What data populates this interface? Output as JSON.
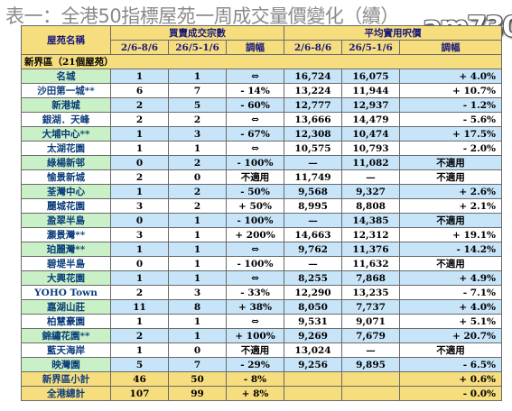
{
  "title": "表一：全港50指標屋苑一周成交量價變化（續）",
  "watermark": "am730",
  "headers": {
    "estate": "屋苑名稱",
    "volume_group": "買賣成交宗數",
    "price_group": "平均實用呎價",
    "col_2_8_6": "2/6-8/6",
    "col_26_5_1_6": "26/5-1/6",
    "change": "調幅"
  },
  "region_label": "新界區（21個屋苑）",
  "rows": [
    {
      "name": "名城",
      "v1": "1",
      "v2": "1",
      "vc": "⇔",
      "p1": "16,724",
      "p2": "16,075",
      "pc": "+ 4.0%"
    },
    {
      "name": "沙田第一城**",
      "v1": "6",
      "v2": "7",
      "vc": "- 14%",
      "p1": "13,224",
      "p2": "11,944",
      "pc": "+ 10.7%"
    },
    {
      "name": "新港城",
      "v1": "2",
      "v2": "5",
      "vc": "- 60%",
      "p1": "12,777",
      "p2": "12,937",
      "pc": "- 1.2%"
    },
    {
      "name": "銀湖．天峰",
      "v1": "2",
      "v2": "2",
      "vc": "⇔",
      "p1": "13,666",
      "p2": "14,479",
      "pc": "- 5.6%"
    },
    {
      "name": "大埔中心**",
      "v1": "1",
      "v2": "3",
      "vc": "- 67%",
      "p1": "12,308",
      "p2": "10,474",
      "pc": "+ 17.5%"
    },
    {
      "name": "太湖花園",
      "v1": "1",
      "v2": "1",
      "vc": "⇔",
      "p1": "10,575",
      "p2": "10,793",
      "pc": "- 2.0%"
    },
    {
      "name": "綠楊新邨",
      "v1": "0",
      "v2": "2",
      "vc": "- 100%",
      "p1": "—",
      "p2": "11,082",
      "pc": "不適用"
    },
    {
      "name": "愉景新城",
      "v1": "2",
      "v2": "0",
      "vc": "不適用",
      "p1": "11,749",
      "p2": "—",
      "pc": "不適用"
    },
    {
      "name": "荃灣中心",
      "v1": "1",
      "v2": "2",
      "vc": "- 50%",
      "p1": "9,568",
      "p2": "9,327",
      "pc": "+ 2.6%"
    },
    {
      "name": "麗城花園",
      "v1": "3",
      "v2": "2",
      "vc": "+ 50%",
      "p1": "8,995",
      "p2": "8,808",
      "pc": "+ 2.1%"
    },
    {
      "name": "盈翠半島",
      "v1": "0",
      "v2": "1",
      "vc": "- 100%",
      "p1": "—",
      "p2": "14,385",
      "pc": "不適用"
    },
    {
      "name": "灝景灣**",
      "v1": "3",
      "v2": "1",
      "vc": "+ 200%",
      "p1": "14,663",
      "p2": "12,312",
      "pc": "+ 19.1%"
    },
    {
      "name": "珀麗灣**",
      "v1": "1",
      "v2": "1",
      "vc": "⇔",
      "p1": "9,762",
      "p2": "11,376",
      "pc": "- 14.2%"
    },
    {
      "name": "碧堤半島",
      "v1": "0",
      "v2": "1",
      "vc": "- 100%",
      "p1": "—",
      "p2": "11,632",
      "pc": "不適用"
    },
    {
      "name": "大興花園",
      "v1": "1",
      "v2": "1",
      "vc": "⇔",
      "p1": "8,255",
      "p2": "7,868",
      "pc": "+ 4.9%"
    },
    {
      "name": "YOHO Town",
      "v1": "2",
      "v2": "3",
      "vc": "- 33%",
      "p1": "12,290",
      "p2": "13,235",
      "pc": "- 7.1%"
    },
    {
      "name": "嘉湖山莊",
      "v1": "11",
      "v2": "8",
      "vc": "+ 38%",
      "p1": "8,050",
      "p2": "7,737",
      "pc": "+ 4.0%"
    },
    {
      "name": "柏慧豪園",
      "v1": "1",
      "v2": "1",
      "vc": "⇔",
      "p1": "9,531",
      "p2": "9,071",
      "pc": "+ 5.1%"
    },
    {
      "name": "錦繡花園**",
      "v1": "2",
      "v2": "1",
      "vc": "+ 100%",
      "p1": "9,269",
      "p2": "7,679",
      "pc": "+ 20.7%"
    },
    {
      "name": "藍天海岸",
      "v1": "1",
      "v2": "0",
      "vc": "不適用",
      "p1": "13,024",
      "p2": "—",
      "pc": "不適用"
    },
    {
      "name": "映灣園",
      "v1": "5",
      "v2": "7",
      "vc": "- 29%",
      "p1": "9,256",
      "p2": "9,895",
      "pc": "- 6.5%"
    }
  ],
  "totals": [
    {
      "name": "新界區小計",
      "v1": "46",
      "v2": "50",
      "vc": "- 8%",
      "p1": "",
      "p2": "",
      "pc": "+ 0.6%"
    },
    {
      "name": "全港總計",
      "v1": "107",
      "v2": "99",
      "vc": "+ 8%",
      "p1": "",
      "p2": "",
      "pc": "- 0.0%"
    }
  ]
}
